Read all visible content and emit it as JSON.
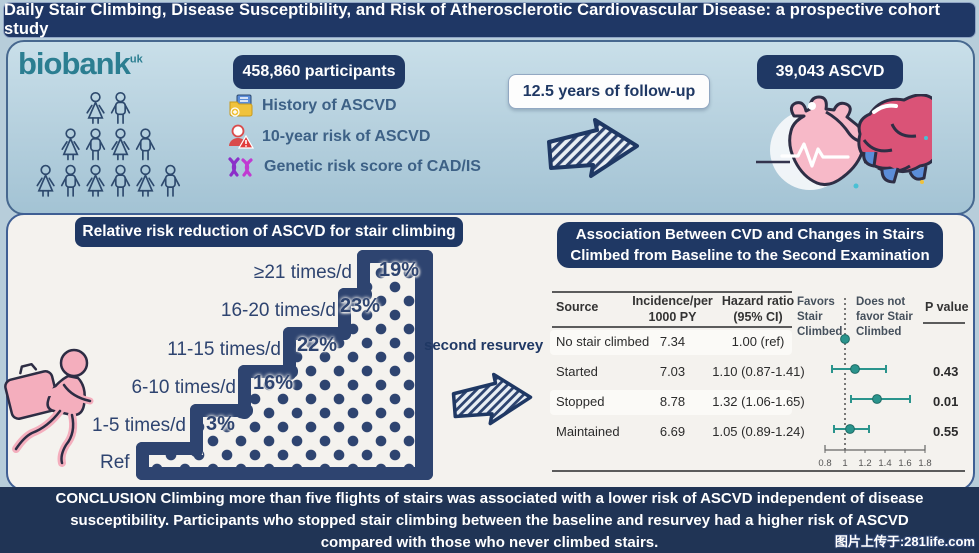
{
  "title": "Daily Stair Climbing, Disease Susceptibility, and Risk of Atherosclerotic Cardiovascular Disease: a prospective cohort study",
  "colors": {
    "navy": "#1f3864",
    "stair_navy": "#2e4470",
    "teal": "#2a948c",
    "biobank_teal": "#2b7e91",
    "conclusion_navy": "#203455"
  },
  "top": {
    "logo_text": "biobank",
    "logo_sup": "uk",
    "participants_label": "458,860 participants",
    "bullets": [
      {
        "icon": "folder-history-icon",
        "label": "History of ASCVD"
      },
      {
        "icon": "person-warning-icon",
        "label": "10-year risk of ASCVD"
      },
      {
        "icon": "dna-icon",
        "label": "Genetic risk score of CAD/IS"
      }
    ],
    "followup_label": "12.5 years of follow-up",
    "outcome_label": "39,043 ASCVD"
  },
  "stair_panel": {
    "header": "Relative risk reduction of ASCVD for stair climbing",
    "ref_label": "Ref",
    "steps": [
      {
        "label": "1-5 times/d",
        "value": "3%"
      },
      {
        "label": "6-10 times/d",
        "value": "16%"
      },
      {
        "label": "11-15 times/d",
        "value": "22%"
      },
      {
        "label": "16-20 times/d",
        "value": "23%"
      },
      {
        "label": "≥21 times/d",
        "value": "19%"
      }
    ],
    "resurvey_label": "second resurvey"
  },
  "table_panel": {
    "header": "Association Between CVD and Changes in Stairs Climbed from Baseline to the Second Examination",
    "col_source": "Source",
    "col_incidence": "Incidence/per\n1000 PY",
    "col_hazard": "Hazard ratio\n(95% CI)",
    "col_favors": "Favors\nStair\nClimbed",
    "col_not_favor": "Does not\nfavor Stair\nClimbed",
    "col_p": "P value",
    "rows": [
      {
        "source": "No stair climbed",
        "incidence": "7.34",
        "hr": "1.00 (ref)",
        "p": ""
      },
      {
        "source": "Started",
        "incidence": "7.03",
        "hr": "1.10 (0.87-1.41)",
        "p": "0.43"
      },
      {
        "source": "Stopped",
        "incidence": "8.78",
        "hr": "1.32 (1.06-1.65)",
        "p": "0.01"
      },
      {
        "source": "Maintained",
        "incidence": "6.69",
        "hr": "1.05 (0.89-1.24)",
        "p": "0.55"
      }
    ]
  },
  "chart_data": [
    {
      "type": "bar",
      "title": "Relative risk reduction of ASCVD for stair climbing",
      "categories": [
        "Ref",
        "1-5 times/d",
        "6-10 times/d",
        "11-15 times/d",
        "16-20 times/d",
        "≥21 times/d"
      ],
      "values": [
        0,
        3,
        16,
        22,
        23,
        19
      ],
      "ylabel": "Relative risk reduction (%)",
      "note": "staircase infographic, reduction vs Ref"
    },
    {
      "type": "scatter",
      "subtype": "forest-plot",
      "title": "Association Between CVD and Changes in Stairs Climbed from Baseline to the Second Examination",
      "xlabel": "Hazard ratio (95% CI)",
      "xlim": [
        0.8,
        1.8
      ],
      "xticks": [
        0.8,
        1,
        1.2,
        1.4,
        1.6,
        1.8
      ],
      "reference_line": 1,
      "rows": [
        {
          "source": "No stair climbed",
          "incidence_per_1000py": 7.34,
          "hr": 1.0,
          "ci": [
            null,
            null
          ],
          "p": null
        },
        {
          "source": "Started",
          "incidence_per_1000py": 7.03,
          "hr": 1.1,
          "ci": [
            0.87,
            1.41
          ],
          "p": 0.43
        },
        {
          "source": "Stopped",
          "incidence_per_1000py": 8.78,
          "hr": 1.32,
          "ci": [
            1.06,
            1.65
          ],
          "p": 0.01
        },
        {
          "source": "Maintained",
          "incidence_per_1000py": 6.69,
          "hr": 1.05,
          "ci": [
            0.89,
            1.24
          ],
          "p": 0.55
        }
      ]
    }
  ],
  "conclusion_lines": [
    "CONCLUSION Climbing more than five flights of stairs was associated with a lower risk of ASCVD  independent of disease",
    "susceptibility. Participants who stopped stair climbing between the baseline and resurvey had a higher risk of ASCVD",
    "compared with those who never climbed stairs."
  ],
  "watermark": "图片上传于:281life.com"
}
